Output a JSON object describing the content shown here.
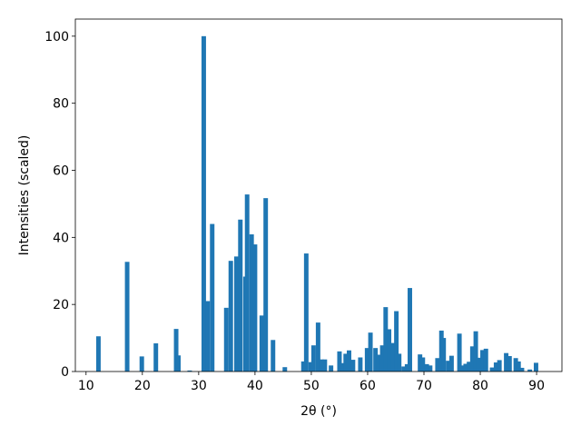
{
  "chart_data": {
    "type": "bar",
    "x_label": "2θ (°)",
    "y_label": "Intensities (scaled)",
    "color": "#1f77b4",
    "x": [
      12.2,
      17.3,
      19.9,
      22.4,
      26.0,
      26.4,
      28.4,
      30.9,
      31.6,
      32.4,
      34.9,
      35.7,
      36.7,
      37.4,
      38.3,
      38.6,
      39.4,
      40.0,
      41.2,
      41.9,
      43.2,
      45.3,
      48.6,
      49.1,
      49.9,
      50.4,
      51.2,
      51.8,
      52.4,
      53.5,
      55.0,
      55.6,
      56.1,
      56.7,
      57.4,
      58.7,
      59.9,
      60.5,
      61.4,
      61.9,
      62.6,
      63.2,
      63.8,
      64.5,
      65.1,
      65.6,
      66.4,
      67.0,
      67.5,
      69.3,
      69.8,
      70.5,
      71.1,
      72.4,
      73.1,
      73.5,
      74.3,
      74.9,
      76.3,
      76.8,
      77.4,
      78.0,
      78.6,
      79.2,
      79.7,
      80.4,
      81.0,
      82.1,
      82.8,
      83.4,
      84.6,
      85.2,
      86.3,
      86.8,
      87.4,
      88.8,
      89.9
    ],
    "values": [
      10.5,
      32.7,
      4.5,
      8.4,
      12.7,
      4.8,
      0.3,
      100,
      21,
      44,
      19,
      33,
      34.3,
      45.3,
      28.3,
      52.8,
      40.9,
      37.9,
      16.7,
      51.7,
      9.4,
      1.3,
      3,
      35.2,
      2.8,
      7.8,
      14.6,
      3.6,
      3.6,
      1.8,
      6,
      2.5,
      5.3,
      6.3,
      3.5,
      4.2,
      7,
      11.6,
      7,
      5,
      7.8,
      19.2,
      12.6,
      8.5,
      18,
      5.3,
      1.5,
      2.2,
      24.9,
      5.1,
      4.2,
      2.2,
      1.8,
      4,
      12.2,
      10,
      3.2,
      4.7,
      11.3,
      1.8,
      2.3,
      2.9,
      7.5,
      12,
      4.1,
      6.4,
      6.8,
      1.2,
      2.7,
      3.4,
      5.5,
      4.6,
      4,
      3,
      1.1,
      0.6,
      2.6
    ],
    "xlim": [
      8.1,
      94.5
    ],
    "xticks": [
      10,
      20,
      30,
      40,
      50,
      60,
      70,
      80,
      90
    ],
    "ylim": [
      0,
      105.1
    ],
    "yticks": [
      0,
      20,
      40,
      60,
      80,
      100
    ],
    "grid": false
  }
}
